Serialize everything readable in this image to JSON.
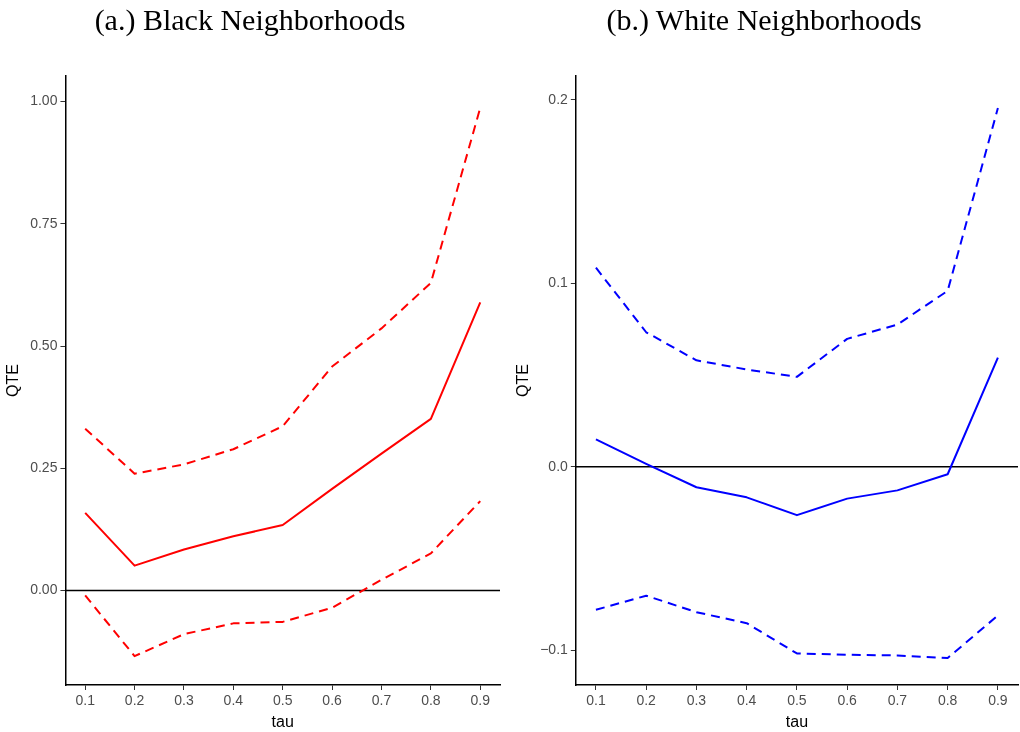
{
  "chart_data": [
    {
      "type": "line",
      "title": "(a.) Black Neighborhoods",
      "xlabel": "tau",
      "ylabel": "QTE",
      "x": [
        0.1,
        0.2,
        0.3,
        0.4,
        0.5,
        0.6,
        0.7,
        0.8,
        0.9
      ],
      "series": [
        {
          "color": "#ff0000",
          "line_style": "solid",
          "values": [
            0.159,
            0.051,
            0.084,
            0.111,
            0.134,
            0.208,
            0.28,
            0.351,
            0.589
          ]
        },
        {
          "color": "#ff0000",
          "line_style": "dashed",
          "values": [
            0.331,
            0.239,
            0.258,
            0.289,
            0.336,
            0.458,
            0.536,
            0.629,
            0.987
          ]
        },
        {
          "color": "#ff0000",
          "line_style": "dashed",
          "values": [
            -0.01,
            -0.134,
            -0.089,
            -0.067,
            -0.064,
            -0.035,
            0.022,
            0.076,
            0.183
          ]
        }
      ],
      "xlim": [
        0.06,
        0.94
      ],
      "xticks": [
        0.1,
        0.2,
        0.3,
        0.4,
        0.5,
        0.6,
        0.7,
        0.8,
        0.9
      ],
      "ylim": [
        -0.193,
        1.052
      ],
      "yticks": [
        {
          "value": 0,
          "label": "0.00"
        },
        {
          "value": 0.25,
          "label": "0.25"
        },
        {
          "value": 0.5,
          "label": "0.50"
        },
        {
          "value": 0.75,
          "label": "0.75"
        },
        {
          "value": 1,
          "label": "1.00"
        }
      ],
      "ref_lines": [
        {
          "axis": "y",
          "value": 0,
          "color": "#000000"
        }
      ],
      "grid": false,
      "legend": false,
      "marker": "none"
    },
    {
      "type": "line",
      "title": "(b.) White Neighborhoods",
      "xlabel": "tau",
      "ylabel": "QTE",
      "x": [
        0.1,
        0.2,
        0.3,
        0.4,
        0.5,
        0.6,
        0.7,
        0.8,
        0.9
      ],
      "series": [
        {
          "color": "#0000ff",
          "line_style": "solid",
          "values": [
            0.0149,
            0.0016,
            -0.0112,
            -0.0167,
            -0.0264,
            -0.0174,
            -0.0129,
            -0.0041,
            0.0595
          ]
        },
        {
          "color": "#0000ff",
          "line_style": "dashed",
          "values": [
            0.1085,
            0.0733,
            0.058,
            0.053,
            0.049,
            0.0697,
            0.0775,
            0.0959,
            0.1955
          ]
        },
        {
          "color": "#0000ff",
          "line_style": "dashed",
          "values": [
            -0.078,
            -0.0703,
            -0.0793,
            -0.0853,
            -0.1018,
            -0.1025,
            -0.1029,
            -0.1043,
            -0.0811
          ]
        }
      ],
      "xlim": [
        0.06,
        0.94
      ],
      "xticks": [
        0.1,
        0.2,
        0.3,
        0.4,
        0.5,
        0.6,
        0.7,
        0.8,
        0.9
      ],
      "ylim": [
        -0.119,
        0.213
      ],
      "yticks": [
        {
          "value": -0.1,
          "label": "−0.1"
        },
        {
          "value": 0,
          "label": "0.0"
        },
        {
          "value": 0.1,
          "label": "0.1"
        },
        {
          "value": 0.2,
          "label": "0.2"
        }
      ],
      "ref_lines": [
        {
          "axis": "y",
          "value": 0,
          "color": "#000000"
        }
      ],
      "grid": false,
      "legend": false,
      "marker": "none"
    }
  ]
}
